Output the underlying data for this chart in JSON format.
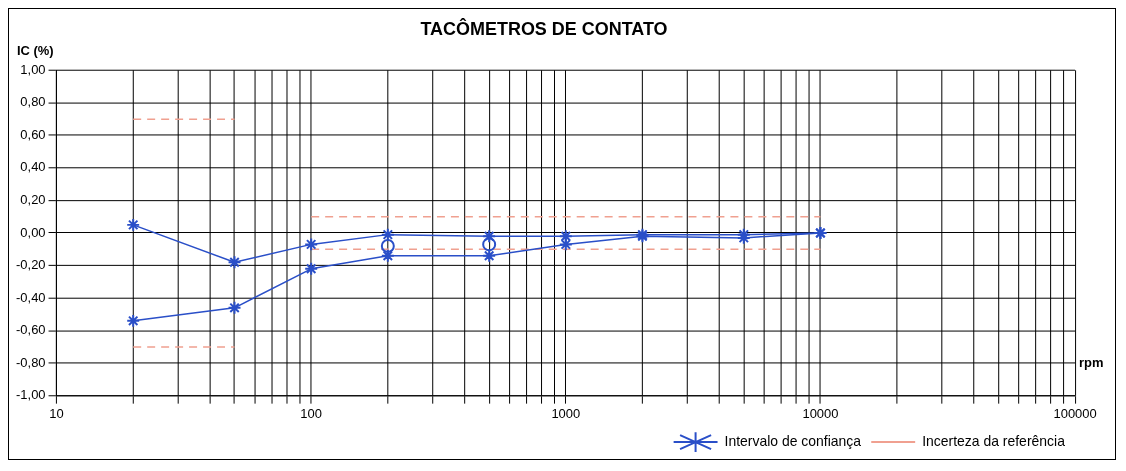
{
  "chart_data": {
    "type": "line",
    "title": "TACÔMETROS DE CONTATO",
    "ylabel": "IC (%)",
    "xlabel": "rpm",
    "log": "x",
    "grid": true,
    "legend": "bottom right",
    "marker": "cross",
    "xlim": [
      10,
      100000
    ],
    "xticks": [
      10,
      {
        "value": 20,
        "label": null
      },
      {
        "value": 30,
        "label": null
      },
      {
        "value": 40,
        "label": null
      },
      {
        "value": 50,
        "label": null
      },
      {
        "value": 60,
        "label": null
      },
      {
        "value": 70,
        "label": null
      },
      {
        "value": 80,
        "label": null
      },
      {
        "value": 90,
        "label": null
      },
      100,
      {
        "value": 200,
        "label": null
      },
      {
        "value": 300,
        "label": null
      },
      {
        "value": 400,
        "label": null
      },
      {
        "value": 500,
        "label": null
      },
      {
        "value": 600,
        "label": null
      },
      {
        "value": 700,
        "label": null
      },
      {
        "value": 800,
        "label": null
      },
      {
        "value": 900,
        "label": null
      },
      1000,
      {
        "value": 2000,
        "label": null
      },
      {
        "value": 3000,
        "label": null
      },
      {
        "value": 4000,
        "label": null
      },
      {
        "value": 5000,
        "label": null
      },
      {
        "value": 6000,
        "label": null
      },
      {
        "value": 7000,
        "label": null
      },
      {
        "value": 8000,
        "label": null
      },
      {
        "value": 9000,
        "label": null
      },
      10000,
      {
        "value": 20000,
        "label": null
      },
      {
        "value": 30000,
        "label": null
      },
      {
        "value": 40000,
        "label": null
      },
      {
        "value": 50000,
        "label": null
      },
      {
        "value": 60000,
        "label": null
      },
      {
        "value": 70000,
        "label": null
      },
      {
        "value": 80000,
        "label": null
      },
      {
        "value": 90000,
        "label": null
      },
      100000
    ],
    "ylim": [
      -1,
      1
    ],
    "yticks": [
      {
        "value": -1,
        "label": "-1,00"
      },
      {
        "value": -0.8,
        "label": "-0,80"
      },
      {
        "value": -0.6,
        "label": "-0,60"
      },
      {
        "value": -0.4,
        "label": "-0,40"
      },
      {
        "value": -0.2,
        "label": "-0,20"
      },
      {
        "value": 0,
        "label": "0,00"
      },
      {
        "value": 0.2,
        "label": "0,20"
      },
      {
        "value": 0.4,
        "label": "0,40"
      },
      {
        "value": 0.6,
        "label": "0,60"
      },
      {
        "value": 0.8,
        "label": "0,80"
      },
      {
        "value": 1,
        "label": "1,00"
      }
    ],
    "series": [
      {
        "name": "Intervalo de confiança",
        "color": "#2a4fc8",
        "line_style": "solid",
        "x": [
          20,
          50,
          100,
          200,
          500,
          1000,
          2000,
          5000,
          10000
        ],
        "values": [
          0.05,
          -0.18,
          -0.07,
          -0.01,
          -0.02,
          -0.02,
          -0.01,
          -0.01,
          0
        ]
      },
      {
        "color": "#2a4fc8",
        "line_style": "solid",
        "x": [
          20,
          50,
          100,
          200,
          500,
          1000,
          2000,
          5000,
          10000
        ],
        "values": [
          -0.54,
          -0.46,
          -0.22,
          -0.14,
          -0.14,
          -0.07,
          -0.02,
          -0.03,
          0
        ]
      },
      {
        "type": "scatter",
        "color": "#2a4fc8",
        "marker": "circle",
        "x": [
          200,
          500
        ],
        "values": [
          -0.08,
          -0.07
        ]
      },
      {
        "name": "Incerteza da referência",
        "color": "#f0a090",
        "marker": "none",
        "line_style": "dashed",
        "x": [
          20,
          50
        ],
        "values": [
          0.7,
          0.7
        ]
      },
      {
        "color": "#f0a090",
        "marker": "none",
        "line_style": "dashed",
        "x": [
          20,
          50
        ],
        "values": [
          -0.7,
          -0.7
        ]
      },
      {
        "color": "#f0a090",
        "marker": "none",
        "line_style": "dashed",
        "x": [
          100,
          10000
        ],
        "values": [
          0.1,
          0.1
        ]
      },
      {
        "color": "#f0a090",
        "marker": "none",
        "line_style": "dashed",
        "x": [
          100,
          10000
        ],
        "values": [
          -0.1,
          -0.1
        ]
      }
    ]
  }
}
